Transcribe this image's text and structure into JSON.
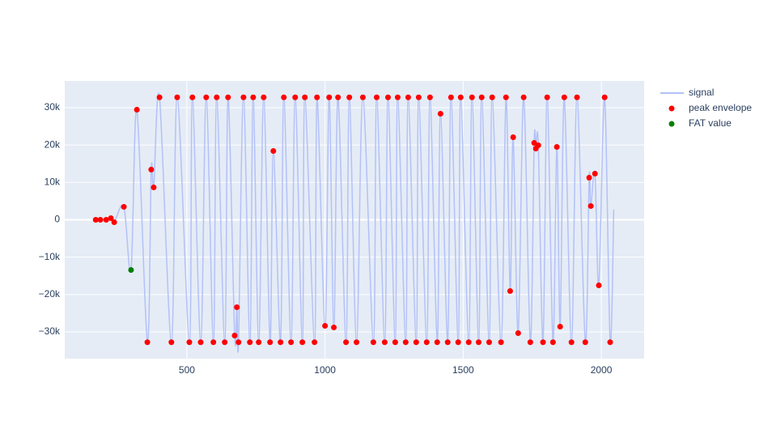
{
  "chart_data": {
    "type": "line",
    "xlim": [
      58,
      2155
    ],
    "ylim": [
      -37150,
      37150
    ],
    "xticks": [
      500,
      1000,
      1500,
      2000
    ],
    "yticks": [
      {
        "value": -30000,
        "label": "−30k"
      },
      {
        "value": -20000,
        "label": "−20k"
      },
      {
        "value": -10000,
        "label": "−10k"
      },
      0,
      {
        "value": 10000,
        "label": "10k"
      },
      {
        "value": 20000,
        "label": "20k"
      },
      {
        "value": 30000,
        "label": "30k"
      }
    ],
    "grid": true,
    "legend": "right",
    "series": [
      {
        "name": "signal",
        "color": "#b3c1f7",
        "mode": "lines",
        "x": [
          170,
          187,
          208,
          225,
          237,
          272,
          298,
          319,
          357,
          371,
          380,
          401,
          444,
          465,
          509,
          520,
          550,
          570,
          596,
          608,
          637,
          649,
          673,
          681,
          687,
          705,
          728,
          740,
          760,
          778,
          801,
          813,
          839,
          851,
          877,
          892,
          918,
          927,
          962,
          971,
          1000,
          1015,
          1032,
          1047,
          1076,
          1088,
          1114,
          1137,
          1175,
          1187,
          1216,
          1228,
          1254,
          1263,
          1292,
          1301,
          1330,
          1339,
          1368,
          1380,
          1406,
          1418,
          1444,
          1456,
          1482,
          1491,
          1520,
          1532,
          1556,
          1567,
          1594,
          1605,
          1637,
          1655,
          1670,
          1681,
          1699,
          1719,
          1743,
          1757,
          1763,
          1772,
          1789,
          1804,
          1825,
          1839,
          1851,
          1866,
          1892,
          1912,
          1942,
          1956,
          1962,
          1977,
          1991,
          2012,
          2032,
          2045
        ],
        "values": [
          0,
          0,
          0,
          433,
          -650,
          3466,
          -13430,
          29460,
          -32768,
          13430,
          8660,
          32767,
          -32768,
          32767,
          -32768,
          32767,
          -32768,
          32767,
          -32768,
          32767,
          -32768,
          32767,
          -30970,
          -23390,
          -32768,
          32767,
          -32768,
          32767,
          -32768,
          32767,
          -32768,
          18410,
          -32768,
          32767,
          -32768,
          32767,
          -32768,
          32767,
          -32768,
          32767,
          -28370,
          32767,
          -28800,
          32767,
          -32768,
          32767,
          -32768,
          32767,
          -32768,
          32767,
          -32768,
          32767,
          -32768,
          32767,
          -32768,
          32767,
          -32768,
          32767,
          -32768,
          32767,
          -32768,
          28370,
          -32768,
          32767,
          -32768,
          32767,
          -32768,
          32767,
          -32768,
          32767,
          -32768,
          32767,
          -32768,
          32767,
          -19060,
          22090,
          -30320,
          32767,
          -32768,
          20580,
          19060,
          19930,
          -32768,
          32767,
          -32768,
          19490,
          -28590,
          32767,
          -32768,
          32767,
          -32768,
          11260,
          3680,
          12350,
          -17540,
          32767,
          -32768,
          2700
        ]
      },
      {
        "name": "peak envelope",
        "color": "#ff0000",
        "mode": "markers",
        "x": [
          170,
          187,
          208,
          225,
          237,
          272,
          319,
          357,
          371,
          380,
          401,
          444,
          465,
          509,
          520,
          550,
          570,
          596,
          608,
          637,
          649,
          673,
          681,
          687,
          705,
          728,
          740,
          760,
          778,
          801,
          813,
          839,
          851,
          877,
          892,
          918,
          927,
          962,
          971,
          1000,
          1015,
          1032,
          1047,
          1076,
          1088,
          1114,
          1137,
          1175,
          1187,
          1216,
          1228,
          1254,
          1263,
          1292,
          1301,
          1330,
          1339,
          1368,
          1380,
          1406,
          1418,
          1444,
          1456,
          1482,
          1491,
          1520,
          1532,
          1556,
          1567,
          1594,
          1605,
          1637,
          1655,
          1670,
          1681,
          1699,
          1719,
          1743,
          1757,
          1763,
          1772,
          1789,
          1804,
          1825,
          1839,
          1851,
          1866,
          1892,
          1912,
          1942,
          1956,
          1962,
          1977,
          1991,
          2012,
          2032
        ],
        "values": [
          0,
          0,
          0,
          433,
          -650,
          3466,
          29460,
          -32768,
          13430,
          8660,
          32767,
          -32768,
          32767,
          -32768,
          32767,
          -32768,
          32767,
          -32768,
          32767,
          -32768,
          32767,
          -30970,
          -23390,
          -32768,
          32767,
          -32768,
          32767,
          -32768,
          32767,
          -32768,
          18410,
          -32768,
          32767,
          -32768,
          32767,
          -32768,
          32767,
          -32768,
          32767,
          -28370,
          32767,
          -28800,
          32767,
          -32768,
          32767,
          -32768,
          32767,
          -32768,
          32767,
          -32768,
          32767,
          -32768,
          32767,
          -32768,
          32767,
          -32768,
          32767,
          -32768,
          32767,
          -32768,
          28370,
          -32768,
          32767,
          -32768,
          32767,
          -32768,
          32767,
          -32768,
          32767,
          -32768,
          32767,
          -32768,
          32767,
          -19060,
          22090,
          -30320,
          32767,
          -32768,
          20580,
          19060,
          19930,
          -32768,
          32767,
          -32768,
          19490,
          -28590,
          32767,
          -32768,
          32767,
          -32768,
          11260,
          3680,
          12350,
          -17540,
          32767,
          -32768
        ]
      },
      {
        "name": "FAT value",
        "color": "#008000",
        "mode": "markers",
        "x": [
          298
        ],
        "values": [
          -13430
        ]
      }
    ]
  }
}
